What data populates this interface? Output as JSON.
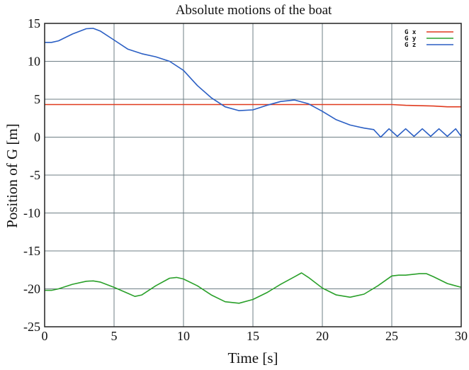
{
  "chart_data": {
    "type": "line",
    "title": "Absolute motions of the boat",
    "xlabel": "Time [s]",
    "ylabel": "Position of G [m]",
    "xlim": [
      0,
      30
    ],
    "ylim": [
      -25,
      15
    ],
    "xticks": [
      0,
      5,
      10,
      15,
      20,
      25,
      30
    ],
    "yticks": [
      15,
      10,
      5,
      0,
      -5,
      -10,
      -15,
      -20,
      -25
    ],
    "grid": true,
    "legend_position": "top-right",
    "series": [
      {
        "name": "G x",
        "color": "#e03a1e",
        "points": [
          [
            0,
            4.3
          ],
          [
            5,
            4.3
          ],
          [
            10,
            4.3
          ],
          [
            15,
            4.3
          ],
          [
            20,
            4.3
          ],
          [
            24,
            4.3
          ],
          [
            25,
            4.3
          ],
          [
            26,
            4.2
          ],
          [
            27,
            4.15
          ],
          [
            28,
            4.1
          ],
          [
            29,
            4.0
          ],
          [
            30,
            4.0
          ]
        ]
      },
      {
        "name": "G y",
        "color": "#2aa02a",
        "points": [
          [
            0,
            -20.2
          ],
          [
            0.5,
            -20.2
          ],
          [
            1,
            -20.0
          ],
          [
            2,
            -19.4
          ],
          [
            3,
            -19.0
          ],
          [
            3.5,
            -18.95
          ],
          [
            4,
            -19.1
          ],
          [
            5,
            -19.8
          ],
          [
            6,
            -20.6
          ],
          [
            6.5,
            -21.0
          ],
          [
            7,
            -20.8
          ],
          [
            8,
            -19.6
          ],
          [
            9,
            -18.6
          ],
          [
            9.5,
            -18.5
          ],
          [
            10,
            -18.7
          ],
          [
            11,
            -19.6
          ],
          [
            12,
            -20.8
          ],
          [
            13,
            -21.7
          ],
          [
            14,
            -21.9
          ],
          [
            15,
            -21.4
          ],
          [
            16,
            -20.5
          ],
          [
            17,
            -19.4
          ],
          [
            18,
            -18.4
          ],
          [
            18.5,
            -17.9
          ],
          [
            19,
            -18.5
          ],
          [
            20,
            -19.9
          ],
          [
            21,
            -20.8
          ],
          [
            22,
            -21.1
          ],
          [
            23,
            -20.7
          ],
          [
            24,
            -19.6
          ],
          [
            25,
            -18.3
          ],
          [
            25.5,
            -18.2
          ],
          [
            26,
            -18.2
          ],
          [
            27,
            -18.0
          ],
          [
            27.5,
            -18.0
          ],
          [
            28,
            -18.4
          ],
          [
            29,
            -19.3
          ],
          [
            30,
            -19.8
          ]
        ]
      },
      {
        "name": "G z",
        "color": "#2b5fc4",
        "points": [
          [
            0,
            12.5
          ],
          [
            0.5,
            12.5
          ],
          [
            1,
            12.7
          ],
          [
            2,
            13.6
          ],
          [
            3,
            14.3
          ],
          [
            3.5,
            14.35
          ],
          [
            4,
            14.0
          ],
          [
            5,
            12.8
          ],
          [
            6,
            11.6
          ],
          [
            7,
            11.0
          ],
          [
            8,
            10.6
          ],
          [
            9,
            10.0
          ],
          [
            10,
            8.8
          ],
          [
            11,
            6.8
          ],
          [
            12,
            5.2
          ],
          [
            13,
            4.0
          ],
          [
            14,
            3.5
          ],
          [
            15,
            3.6
          ],
          [
            16,
            4.2
          ],
          [
            17,
            4.7
          ],
          [
            18,
            4.9
          ],
          [
            19,
            4.4
          ],
          [
            20,
            3.4
          ],
          [
            21,
            2.3
          ],
          [
            22,
            1.6
          ],
          [
            23,
            1.2
          ],
          [
            23.7,
            1.0
          ],
          [
            24.2,
            0.0
          ],
          [
            24.8,
            1.1
          ],
          [
            25.4,
            0.1
          ],
          [
            26,
            1.1
          ],
          [
            26.6,
            0.1
          ],
          [
            27.2,
            1.1
          ],
          [
            27.8,
            0.1
          ],
          [
            28.4,
            1.1
          ],
          [
            29,
            0.1
          ],
          [
            29.6,
            1.1
          ],
          [
            30,
            0.1
          ]
        ]
      }
    ]
  }
}
